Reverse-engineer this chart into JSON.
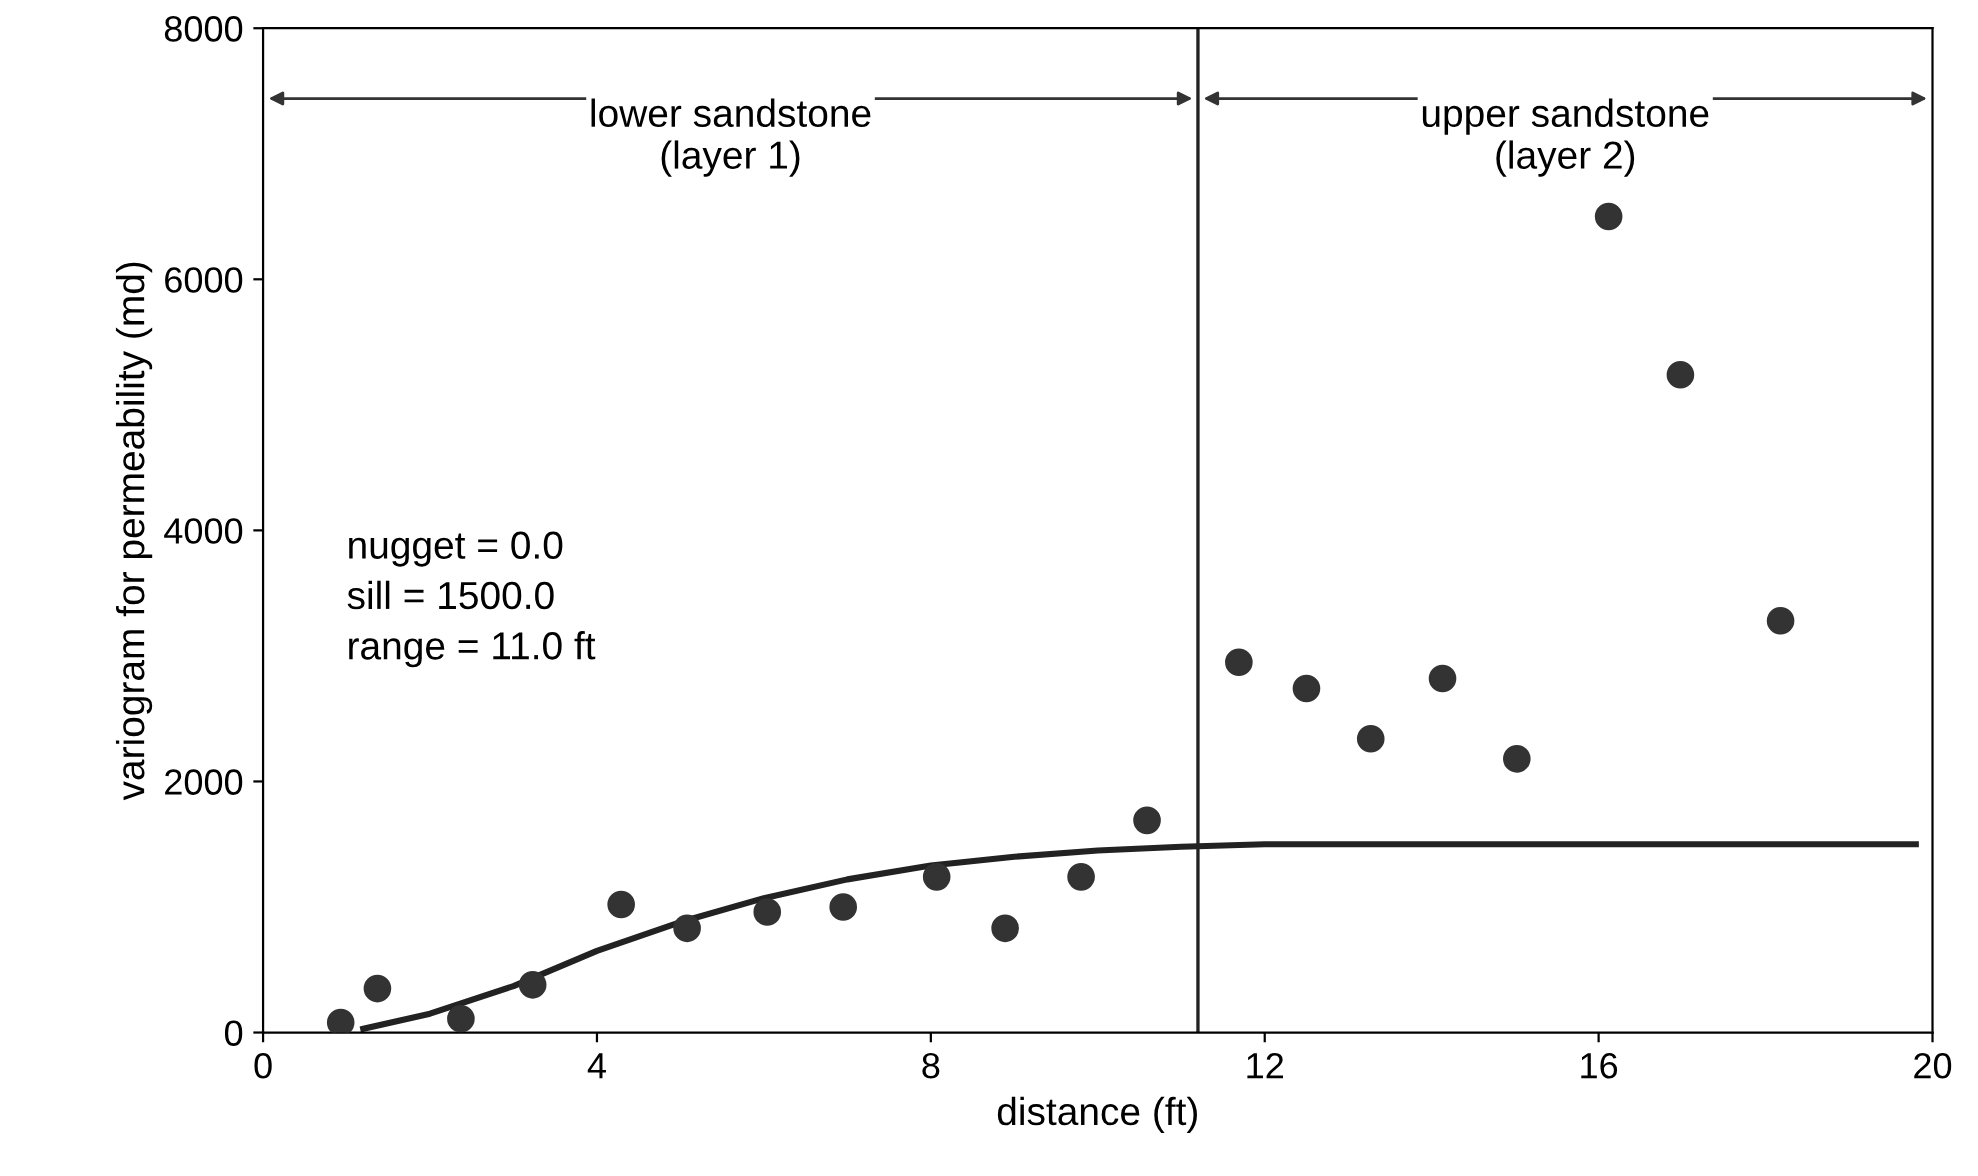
{
  "chart_data": {
    "type": "scatter",
    "xlabel": "distance (ft)",
    "ylabel": "variogram for permeability (md)",
    "xlim": [
      0,
      20
    ],
    "ylim": [
      0,
      8000
    ],
    "xticks": [
      0,
      4,
      8,
      12,
      16,
      20
    ],
    "yticks": [
      0,
      2000,
      4000,
      6000,
      8000
    ],
    "grid": false,
    "legend": false,
    "series": [
      {
        "color": "#333333",
        "marker": "circle",
        "x": [
          0.93,
          1.37,
          2.37,
          3.23,
          4.29,
          5.08,
          6.04,
          6.95,
          8.07,
          8.89,
          9.8,
          10.59,
          11.69,
          12.5,
          13.27,
          14.13,
          15.02,
          16.12,
          16.98,
          18.18
        ],
        "values": [
          80,
          350,
          110,
          380,
          1020,
          830,
          960,
          1000,
          1240,
          830,
          1240,
          1690,
          2950,
          2740,
          2340,
          2820,
          2180,
          6500,
          5240,
          3280
        ]
      },
      {
        "type": "line",
        "color": "#222222",
        "marker": "none",
        "line_style": "solid",
        "x": [
          1.2,
          2,
          3,
          4,
          5,
          6,
          7,
          8,
          9,
          10,
          11,
          12,
          16,
          19.8
        ],
        "values": [
          30,
          150,
          370,
          650,
          880,
          1070,
          1220,
          1330,
          1400,
          1450,
          1480,
          1500,
          1500,
          1500
        ]
      }
    ],
    "ref_lines": [
      {
        "axis": "x",
        "value": 11.2,
        "color": "#222222",
        "line_style": "solid"
      }
    ],
    "annotations": [
      "lower sandstone\n(layer 1)",
      "upper sandstone\n(layer 2)",
      "nugget = 0.0\nsill = 1500.0\nrange = 11.0 ft"
    ]
  }
}
